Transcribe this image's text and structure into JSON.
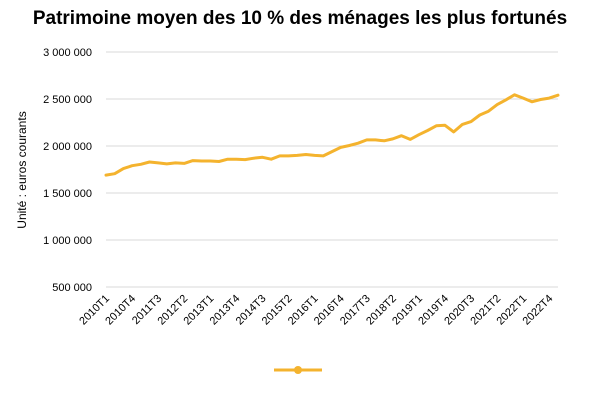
{
  "chart_data": {
    "type": "line",
    "title": "Patrimoine moyen des 10 % des ménages les plus fortunés",
    "ylabel": "Unité : euros courants",
    "xlabel": "",
    "ylim": [
      500000,
      3000000
    ],
    "yticks": [
      500000,
      1000000,
      1500000,
      2000000,
      2500000,
      3000000
    ],
    "ytick_labels": [
      "500 000",
      "1 000 000",
      "1 500 000",
      "2 000 000",
      "2 500 000",
      "3 000 000"
    ],
    "grid": true,
    "legend": "bottom",
    "x": [
      "2010T1",
      "2010T2",
      "2010T3",
      "2010T4",
      "2011T1",
      "2011T2",
      "2011T3",
      "2011T4",
      "2012T1",
      "2012T2",
      "2012T3",
      "2012T4",
      "2013T1",
      "2013T2",
      "2013T3",
      "2013T4",
      "2014T1",
      "2014T2",
      "2014T3",
      "2014T4",
      "2015T1",
      "2015T2",
      "2015T3",
      "2015T4",
      "2016T1",
      "2016T2",
      "2016T3",
      "2016T4",
      "2017T1",
      "2017T2",
      "2017T3",
      "2017T4",
      "2018T1",
      "2018T2",
      "2018T3",
      "2018T4",
      "2019T1",
      "2019T2",
      "2019T3",
      "2019T4",
      "2020T1",
      "2020T2",
      "2020T3",
      "2020T4",
      "2021T1",
      "2021T2",
      "2021T3",
      "2021T4",
      "2022T1",
      "2022T2",
      "2022T3",
      "2022T4",
      "2023T1"
    ],
    "tick_labels": [
      "2010T1",
      "2010T4",
      "2011T3",
      "2012T2",
      "2013T1",
      "2013T4",
      "2014T3",
      "2015T2",
      "2016T1",
      "2016T4",
      "2017T3",
      "2018T2",
      "2019T1",
      "2019T4",
      "2020T3",
      "2021T2",
      "2022T1",
      "2022T4"
    ],
    "series": [
      {
        "name": "",
        "color": "#F4B32E",
        "values": [
          1690000,
          1705000,
          1760000,
          1790000,
          1805000,
          1830000,
          1820000,
          1810000,
          1820000,
          1815000,
          1845000,
          1840000,
          1840000,
          1835000,
          1860000,
          1860000,
          1855000,
          1870000,
          1880000,
          1860000,
          1895000,
          1895000,
          1900000,
          1910000,
          1900000,
          1895000,
          1940000,
          1985000,
          2005000,
          2030000,
          2065000,
          2065000,
          2055000,
          2075000,
          2110000,
          2070000,
          2120000,
          2165000,
          2215000,
          2220000,
          2150000,
          2230000,
          2260000,
          2330000,
          2370000,
          2440000,
          2490000,
          2545000,
          2510000,
          2470000,
          2495000,
          2510000,
          2540000
        ]
      }
    ]
  }
}
